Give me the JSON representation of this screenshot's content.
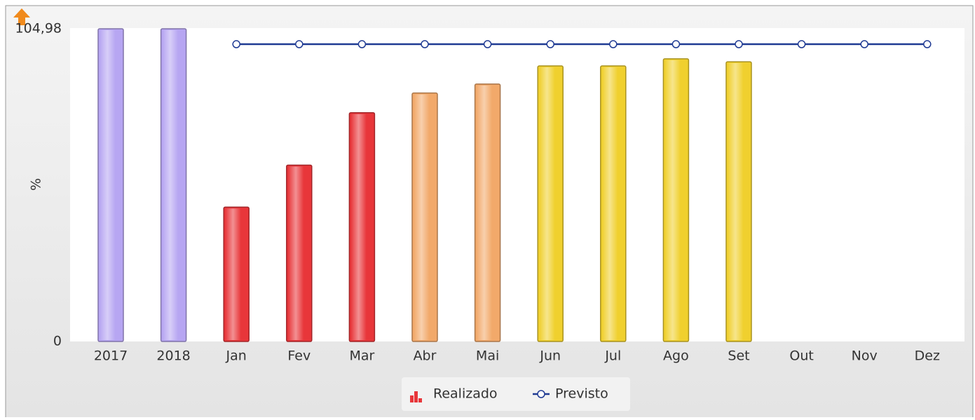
{
  "chart_data": {
    "type": "bar",
    "y_label": "%",
    "categories": [
      "2017",
      "2018",
      "Jan",
      "Fev",
      "Mar",
      "Abr",
      "Mai",
      "Jun",
      "Jul",
      "Ago",
      "Set",
      "Out",
      "Nov",
      "Dez"
    ],
    "series": [
      {
        "name": "Realizado",
        "type": "bar",
        "color": "#e8363a",
        "colors": [
          "#b7a6f2",
          "#b7a6f2",
          "#e8363a",
          "#e8363a",
          "#e8363a",
          "#f2a96a",
          "#f2a96a",
          "#f0d02e",
          "#f0d02e",
          "#f0d02e",
          "#f0d02e",
          "#f0d02e",
          "#f0d02e",
          "#f0d02e"
        ],
        "values": [
          104.98,
          104.98,
          45.1,
          59.2,
          76.8,
          83.4,
          86.4,
          92.5,
          92.5,
          94.9,
          93.9,
          null,
          null,
          null
        ]
      },
      {
        "name": "Previsto",
        "type": "line",
        "color": "#1f3a93",
        "values": [
          null,
          null,
          99.8,
          99.8,
          99.8,
          99.8,
          99.8,
          99.8,
          99.8,
          99.8,
          99.8,
          99.8,
          99.8,
          99.8
        ]
      }
    ],
    "ylim": [
      0,
      104.98
    ],
    "yticks": [
      0,
      {
        "value": 104.98,
        "label": "104,98"
      }
    ],
    "grid": false,
    "legend": "bottom"
  }
}
